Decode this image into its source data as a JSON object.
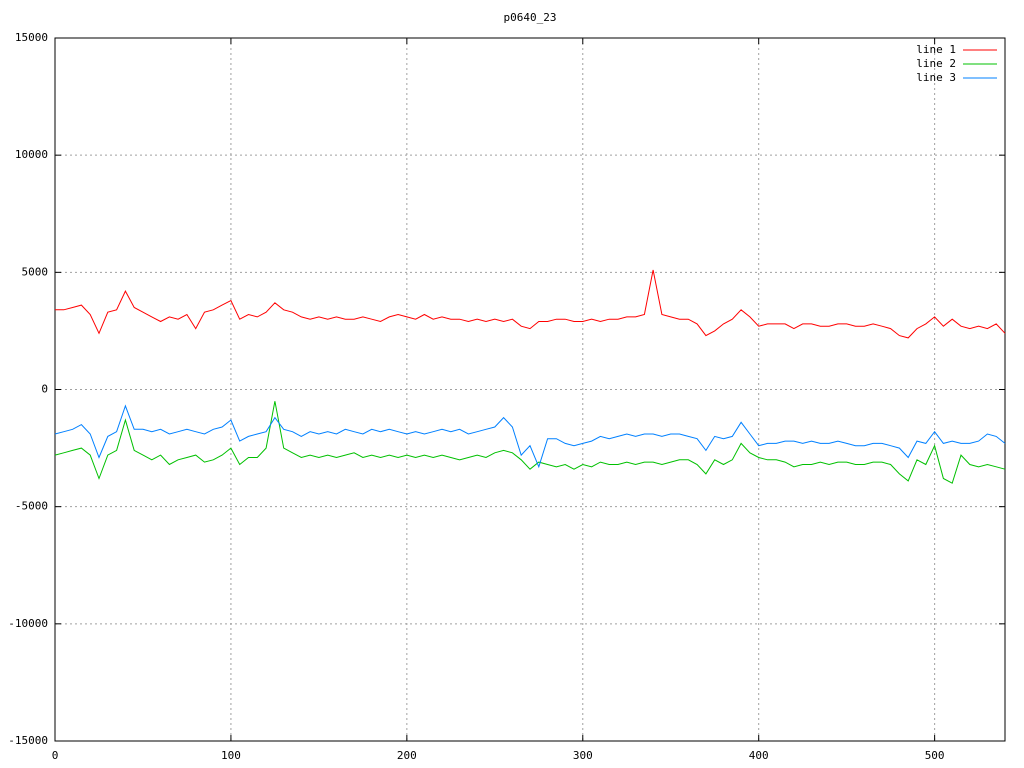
{
  "chart_data": {
    "type": "line",
    "title": "p0640_23",
    "x": [
      0,
      5,
      10,
      15,
      20,
      25,
      30,
      35,
      40,
      45,
      50,
      55,
      60,
      65,
      70,
      75,
      80,
      85,
      90,
      95,
      100,
      105,
      110,
      115,
      120,
      125,
      130,
      135,
      140,
      145,
      150,
      155,
      160,
      165,
      170,
      175,
      180,
      185,
      190,
      195,
      200,
      205,
      210,
      215,
      220,
      225,
      230,
      235,
      240,
      245,
      250,
      255,
      260,
      265,
      270,
      275,
      280,
      285,
      290,
      295,
      300,
      305,
      310,
      315,
      320,
      325,
      330,
      335,
      340,
      345,
      350,
      355,
      360,
      365,
      370,
      375,
      380,
      385,
      390,
      395,
      400,
      405,
      410,
      415,
      420,
      425,
      430,
      435,
      440,
      445,
      450,
      455,
      460,
      465,
      470,
      475,
      480,
      485,
      490,
      495,
      500,
      505,
      510,
      515,
      520,
      525,
      530,
      535,
      540
    ],
    "series": [
      {
        "name": "line 1",
        "color": "#ff0000",
        "values": [
          3400,
          3400,
          3500,
          3600,
          3200,
          2400,
          3300,
          3400,
          4200,
          3500,
          3300,
          3100,
          2900,
          3100,
          3000,
          3200,
          2600,
          3300,
          3400,
          3600,
          3800,
          3000,
          3200,
          3100,
          3300,
          3700,
          3400,
          3300,
          3100,
          3000,
          3100,
          3000,
          3100,
          3000,
          3000,
          3100,
          3000,
          2900,
          3100,
          3200,
          3100,
          3000,
          3200,
          3000,
          3100,
          3000,
          3000,
          2900,
          3000,
          2900,
          3000,
          2900,
          3000,
          2700,
          2600,
          2900,
          2900,
          3000,
          3000,
          2900,
          2900,
          3000,
          2900,
          3000,
          3000,
          3100,
          3100,
          3200,
          5100,
          3200,
          3100,
          3000,
          3000,
          2800,
          2300,
          2500,
          2800,
          3000,
          3400,
          3100,
          2700,
          2800,
          2800,
          2800,
          2600,
          2800,
          2800,
          2700,
          2700,
          2800,
          2800,
          2700,
          2700,
          2800,
          2700,
          2600,
          2300,
          2200,
          2600,
          2800,
          3100,
          2700,
          3000,
          2700,
          2600,
          2700,
          2600,
          2800,
          2400
        ]
      },
      {
        "name": "line 2",
        "color": "#00c000",
        "values": [
          -2800,
          -2700,
          -2600,
          -2500,
          -2800,
          -3800,
          -2800,
          -2600,
          -1300,
          -2600,
          -2800,
          -3000,
          -2800,
          -3200,
          -3000,
          -2900,
          -2800,
          -3100,
          -3000,
          -2800,
          -2500,
          -3200,
          -2900,
          -2900,
          -2500,
          -500,
          -2500,
          -2700,
          -2900,
          -2800,
          -2900,
          -2800,
          -2900,
          -2800,
          -2700,
          -2900,
          -2800,
          -2900,
          -2800,
          -2900,
          -2800,
          -2900,
          -2800,
          -2900,
          -2800,
          -2900,
          -3000,
          -2900,
          -2800,
          -2900,
          -2700,
          -2600,
          -2700,
          -3000,
          -3400,
          -3100,
          -3200,
          -3300,
          -3200,
          -3400,
          -3200,
          -3300,
          -3100,
          -3200,
          -3200,
          -3100,
          -3200,
          -3100,
          -3100,
          -3200,
          -3100,
          -3000,
          -3000,
          -3200,
          -3600,
          -3000,
          -3200,
          -3000,
          -2300,
          -2700,
          -2900,
          -3000,
          -3000,
          -3100,
          -3300,
          -3200,
          -3200,
          -3100,
          -3200,
          -3100,
          -3100,
          -3200,
          -3200,
          -3100,
          -3100,
          -3200,
          -3600,
          -3900,
          -3000,
          -3200,
          -2400,
          -3800,
          -4000,
          -2800,
          -3200,
          -3300,
          -3200,
          -3300,
          -3400
        ]
      },
      {
        "name": "line 3",
        "color": "#0080ff",
        "values": [
          -1900,
          -1800,
          -1700,
          -1500,
          -1900,
          -2900,
          -2000,
          -1800,
          -700,
          -1700,
          -1700,
          -1800,
          -1700,
          -1900,
          -1800,
          -1700,
          -1800,
          -1900,
          -1700,
          -1600,
          -1300,
          -2200,
          -2000,
          -1900,
          -1800,
          -1200,
          -1700,
          -1800,
          -2000,
          -1800,
          -1900,
          -1800,
          -1900,
          -1700,
          -1800,
          -1900,
          -1700,
          -1800,
          -1700,
          -1800,
          -1900,
          -1800,
          -1900,
          -1800,
          -1700,
          -1800,
          -1700,
          -1900,
          -1800,
          -1700,
          -1600,
          -1200,
          -1600,
          -2800,
          -2400,
          -3300,
          -2100,
          -2100,
          -2300,
          -2400,
          -2300,
          -2200,
          -2000,
          -2100,
          -2000,
          -1900,
          -2000,
          -1900,
          -1900,
          -2000,
          -1900,
          -1900,
          -2000,
          -2100,
          -2600,
          -2000,
          -2100,
          -2000,
          -1400,
          -1900,
          -2400,
          -2300,
          -2300,
          -2200,
          -2200,
          -2300,
          -2200,
          -2300,
          -2300,
          -2200,
          -2300,
          -2400,
          -2400,
          -2300,
          -2300,
          -2400,
          -2500,
          -2900,
          -2200,
          -2300,
          -1800,
          -2300,
          -2200,
          -2300,
          -2300,
          -2200,
          -1900,
          -2000,
          -2300
        ]
      }
    ],
    "xlim": [
      0,
      540
    ],
    "xticks": [
      0,
      100,
      200,
      300,
      400,
      500
    ],
    "ylim": [
      -15000,
      15000
    ],
    "yticks": [
      -15000,
      -10000,
      -5000,
      0,
      5000,
      10000,
      15000
    ],
    "grid": true,
    "legend": "top-right"
  }
}
